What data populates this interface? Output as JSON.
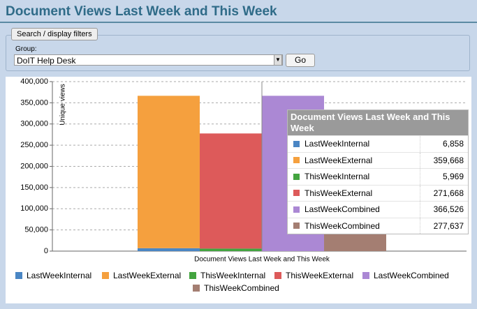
{
  "header": {
    "title": "Document Views Last Week and This Week"
  },
  "filters": {
    "legend": "Search / display filters",
    "group_label": "Group:",
    "group_value": "DoIT Help Desk",
    "button": "Go"
  },
  "chart_data": {
    "type": "bar",
    "title": "Document Views Last Week and This Week",
    "x_label": "Document Views Last Week and This Week",
    "y_label": "Unique views",
    "ylim": [
      0,
      400000
    ],
    "yticks": [
      0,
      {
        "value": 50000,
        "label": "50,000"
      },
      {
        "value": 100000,
        "label": "100,000"
      },
      {
        "value": 150000,
        "label": "150,000"
      },
      {
        "value": 200000,
        "label": "200,000"
      },
      {
        "value": 250000,
        "label": "250,000"
      },
      {
        "value": 300000,
        "label": "300,000"
      },
      {
        "value": 350000,
        "label": "350,000"
      },
      {
        "value": 400000,
        "label": "400,000"
      }
    ],
    "grid": true,
    "series": [
      {
        "name": "LastWeekInternal",
        "color": "#4a86c4",
        "values": [
          6858
        ],
        "value_labels": [
          "6,858"
        ]
      },
      {
        "name": "LastWeekExternal",
        "color": "#f5a03e",
        "values": [
          359668
        ],
        "value_labels": [
          "359,668"
        ]
      },
      {
        "name": "ThisWeekInternal",
        "color": "#43a43f",
        "values": [
          5969
        ],
        "value_labels": [
          "5,969"
        ]
      },
      {
        "name": "ThisWeekExternal",
        "color": "#dd5a5a",
        "values": [
          271668
        ],
        "value_labels": [
          "271,668"
        ]
      },
      {
        "name": "LastWeekCombined",
        "color": "#ab88d4",
        "values": [
          366526
        ],
        "value_labels": [
          "366,526"
        ]
      },
      {
        "name": "ThisWeekCombined",
        "color": "#a47e72",
        "values": [
          277637
        ],
        "value_labels": [
          "277,637"
        ]
      }
    ]
  }
}
